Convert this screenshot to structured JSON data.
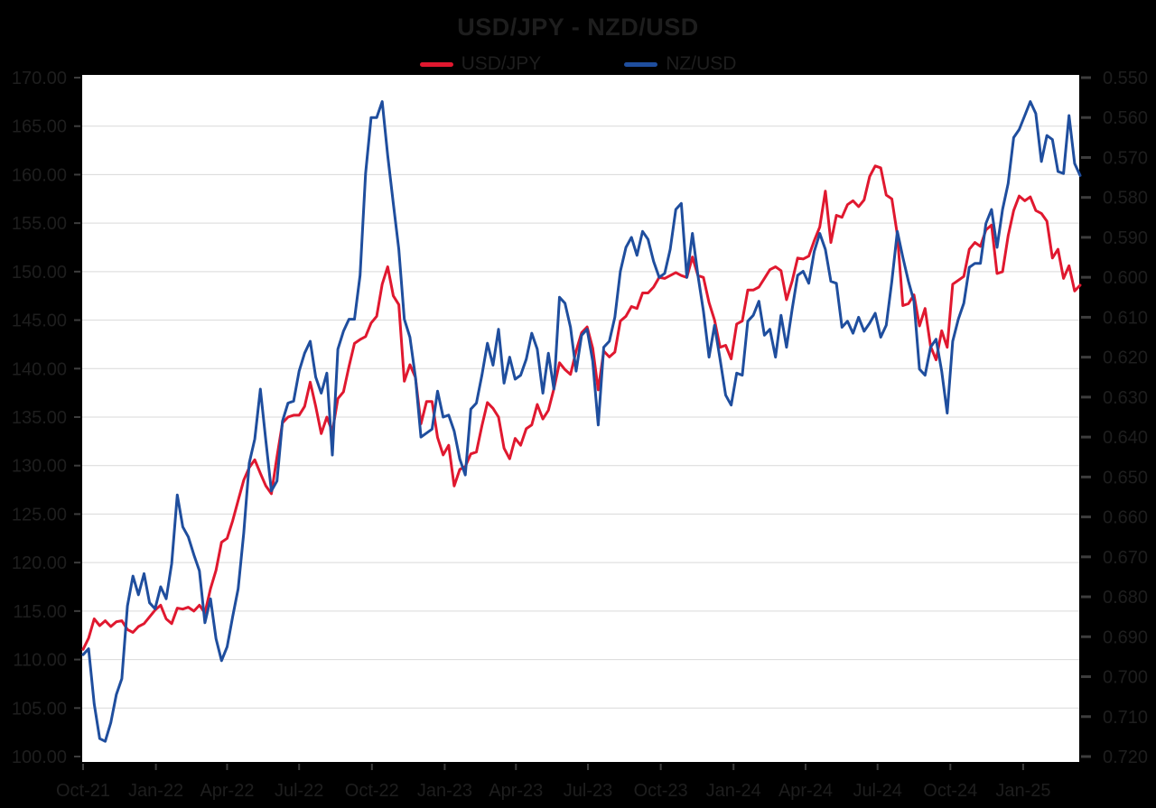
{
  "page": {
    "background": "#000000",
    "plot_background": "#ffffff",
    "text_color": "#1e1e1e",
    "gridline_color": "#d9d9d9",
    "tick_color": "#3d3d3d",
    "border_color": "#000000"
  },
  "title": "USD/JPY - NZD/USD",
  "legend": {
    "items": [
      {
        "label": "USD/JPY",
        "color": "#e0182f"
      },
      {
        "label": "NZ/USD",
        "color": "#1f4e9e"
      }
    ]
  },
  "chart_data": {
    "type": "line",
    "title": "USD/JPY - NZD/USD",
    "grid": true,
    "legend_position": "top-center",
    "x_axis": {
      "start_date": "2021-10-01",
      "interval_days": 7,
      "num_points": 181,
      "ticks": [
        {
          "label": "Oct-21",
          "date": "2021-10-01"
        },
        {
          "label": "Jan-22",
          "date": "2022-01-01"
        },
        {
          "label": "Apr-22",
          "date": "2022-04-01"
        },
        {
          "label": "Jul-22",
          "date": "2022-07-01"
        },
        {
          "label": "Oct-22",
          "date": "2022-10-01"
        },
        {
          "label": "Jan-23",
          "date": "2023-01-01"
        },
        {
          "label": "Apr-23",
          "date": "2023-04-01"
        },
        {
          "label": "Jul-23",
          "date": "2023-07-01"
        },
        {
          "label": "Oct-23",
          "date": "2023-10-01"
        },
        {
          "label": "Jan-24",
          "date": "2024-01-01"
        },
        {
          "label": "Apr-24",
          "date": "2024-04-01"
        },
        {
          "label": "Jul-24",
          "date": "2024-07-01"
        },
        {
          "label": "Oct-24",
          "date": "2024-10-01"
        },
        {
          "label": "Jan-25",
          "date": "2025-01-01"
        }
      ]
    },
    "y_axis_left": {
      "series": "USD/JPY",
      "min": 100.0,
      "max": 170.0,
      "step": 5.0,
      "inverted": false,
      "tick_labels": [
        "170.00",
        "165.00",
        "160.00",
        "155.00",
        "150.00",
        "145.00",
        "140.00",
        "135.00",
        "130.00",
        "125.00",
        "120.00",
        "115.00",
        "110.00",
        "105.00",
        "100.00"
      ]
    },
    "y_axis_right": {
      "series": "NZ/USD",
      "min": 0.55,
      "max": 0.72,
      "step": 0.01,
      "inverted": true,
      "tick_labels": [
        "0.550",
        "0.560",
        "0.570",
        "0.580",
        "0.590",
        "0.600",
        "0.610",
        "0.620",
        "0.630",
        "0.640",
        "0.650",
        "0.660",
        "0.670",
        "0.680",
        "0.690",
        "0.700",
        "0.710",
        "0.720"
      ]
    },
    "series": [
      {
        "name": "USD/JPY",
        "axis": "left",
        "color": "#e0182f",
        "values": [
          111.05,
          112.2,
          114.2,
          113.5,
          114.0,
          113.4,
          113.9,
          114.0,
          113.1,
          112.8,
          113.4,
          113.7,
          114.4,
          115.1,
          115.6,
          114.2,
          113.7,
          115.3,
          115.2,
          115.4,
          115.0,
          115.6,
          114.8,
          117.3,
          119.2,
          122.1,
          122.5,
          124.3,
          126.4,
          128.5,
          129.8,
          130.6,
          129.2,
          127.9,
          127.1,
          130.9,
          134.4,
          135.0,
          135.2,
          135.2,
          136.1,
          138.6,
          136.1,
          133.3,
          135.0,
          133.5,
          136.9,
          137.6,
          140.2,
          142.6,
          143.0,
          143.3,
          144.7,
          145.4,
          148.7,
          150.5,
          147.5,
          146.6,
          138.7,
          140.4,
          139.1,
          134.3,
          136.6,
          136.6,
          132.9,
          131.1,
          132.1,
          127.9,
          129.6,
          129.9,
          131.2,
          131.4,
          134.1,
          136.5,
          135.9,
          135.0,
          131.8,
          130.7,
          132.8,
          132.1,
          133.8,
          134.2,
          136.3,
          134.8,
          135.7,
          137.9,
          140.6,
          139.9,
          139.4,
          141.8,
          143.7,
          144.3,
          142.1,
          137.8,
          141.8,
          141.2,
          141.7,
          144.9,
          145.4,
          146.4,
          146.2,
          147.8,
          147.8,
          148.4,
          149.4,
          149.3,
          149.6,
          149.9,
          149.6,
          149.4,
          151.5,
          149.6,
          149.4,
          146.8,
          145.0,
          142.2,
          142.4,
          141.0,
          144.6,
          144.9,
          148.1,
          148.1,
          148.4,
          149.3,
          150.2,
          150.5,
          150.1,
          147.1,
          149.0,
          151.4,
          151.3,
          151.6,
          153.2,
          154.6,
          158.3,
          153.0,
          155.8,
          155.6,
          156.9,
          157.3,
          156.7,
          157.4,
          159.8,
          160.9,
          160.7,
          157.9,
          157.5,
          153.8,
          146.5,
          146.7,
          147.6,
          144.4,
          146.2,
          142.3,
          140.9,
          143.9,
          142.2,
          148.7,
          149.1,
          149.5,
          152.3,
          153.0,
          152.6,
          154.3,
          154.8,
          149.8,
          150.0,
          153.7,
          156.3,
          157.8,
          157.3,
          157.7,
          156.3,
          156.0,
          155.2,
          151.4,
          152.3,
          149.3,
          150.6,
          148.0,
          148.6
        ]
      },
      {
        "name": "NZ/USD",
        "axis": "right",
        "color": "#1f4e9e",
        "values": [
          0.6945,
          0.693,
          0.7068,
          0.7155,
          0.7162,
          0.7115,
          0.7045,
          0.7005,
          0.6823,
          0.6748,
          0.6795,
          0.6742,
          0.6815,
          0.683,
          0.6775,
          0.6805,
          0.6717,
          0.6545,
          0.6625,
          0.665,
          0.6695,
          0.6735,
          0.6865,
          0.6805,
          0.6905,
          0.696,
          0.6925,
          0.685,
          0.678,
          0.664,
          0.6465,
          0.6405,
          0.628,
          0.641,
          0.6535,
          0.651,
          0.636,
          0.6315,
          0.631,
          0.6235,
          0.619,
          0.616,
          0.625,
          0.629,
          0.624,
          0.6445,
          0.618,
          0.6135,
          0.6105,
          0.6105,
          0.5995,
          0.574,
          0.56,
          0.56,
          0.556,
          0.5695,
          0.5815,
          0.593,
          0.6105,
          0.615,
          0.625,
          0.64,
          0.639,
          0.638,
          0.6285,
          0.635,
          0.6345,
          0.6385,
          0.6455,
          0.6495,
          0.633,
          0.6315,
          0.6245,
          0.6165,
          0.622,
          0.613,
          0.6265,
          0.62,
          0.6255,
          0.6245,
          0.6205,
          0.614,
          0.618,
          0.629,
          0.619,
          0.628,
          0.605,
          0.6065,
          0.6125,
          0.6235,
          0.6145,
          0.613,
          0.621,
          0.637,
          0.6175,
          0.616,
          0.61,
          0.5985,
          0.5925,
          0.59,
          0.5945,
          0.5885,
          0.5905,
          0.596,
          0.6,
          0.599,
          0.593,
          0.583,
          0.5815,
          0.6,
          0.589,
          0.5995,
          0.6085,
          0.62,
          0.612,
          0.6205,
          0.6295,
          0.632,
          0.624,
          0.6245,
          0.611,
          0.6095,
          0.606,
          0.6145,
          0.613,
          0.62,
          0.6095,
          0.6175,
          0.608,
          0.5995,
          0.5985,
          0.6015,
          0.5935,
          0.589,
          0.593,
          0.601,
          0.6015,
          0.6125,
          0.611,
          0.614,
          0.61,
          0.6135,
          0.6115,
          0.609,
          0.615,
          0.612,
          0.601,
          0.5885,
          0.595,
          0.601,
          0.606,
          0.623,
          0.6245,
          0.6175,
          0.6155,
          0.6235,
          0.634,
          0.616,
          0.6105,
          0.6065,
          0.5975,
          0.5965,
          0.5965,
          0.5865,
          0.583,
          0.5925,
          0.583,
          0.5765,
          0.565,
          0.563,
          0.5595,
          0.556,
          0.559,
          0.571,
          0.5645,
          0.5655,
          0.5735,
          0.574,
          0.5595,
          0.5715,
          0.5745
        ]
      }
    ]
  }
}
